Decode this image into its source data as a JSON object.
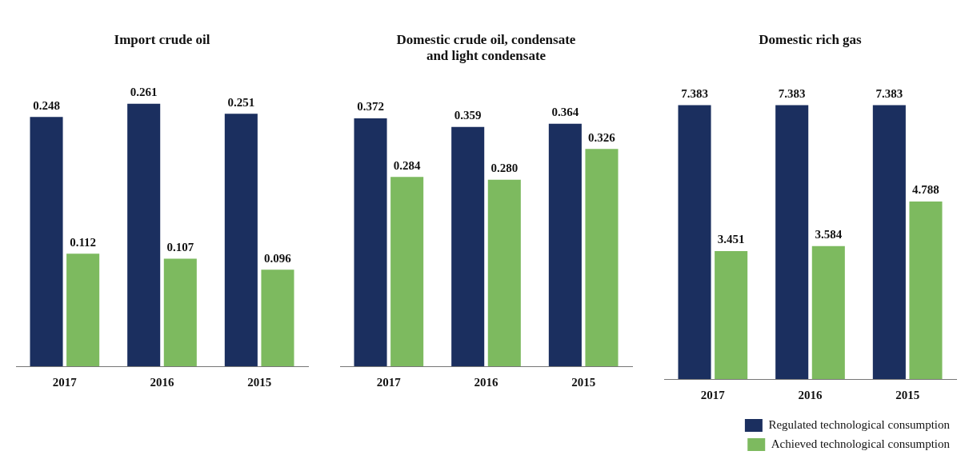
{
  "chart_data": [
    {
      "type": "bar",
      "title": "Import crude oil",
      "categories": [
        "2017",
        "2016",
        "2015"
      ],
      "series": [
        {
          "color": "#1b2f5f",
          "values": [
            0.248,
            0.261,
            0.251
          ]
        },
        {
          "color": "#7dba5f",
          "values": [
            0.112,
            0.107,
            0.096
          ]
        }
      ],
      "data_labels": true,
      "grid": false,
      "legend": false,
      "tick_labels": "x"
    },
    {
      "type": "bar",
      "title": "Domestic crude oil, condensate and light condensate",
      "categories": [
        "2017",
        "2016",
        "2015"
      ],
      "series": [
        {
          "color": "#1b2f5f",
          "values": [
            0.372,
            0.359,
            0.364
          ],
          "value_labels": [
            "0.372",
            "0.359",
            "0.364"
          ]
        },
        {
          "color": "#7dba5f",
          "values": [
            0.284,
            0.28,
            0.326
          ],
          "value_labels": [
            "0.284",
            "0.280",
            "0.326"
          ]
        }
      ],
      "grid": false,
      "legend": false,
      "tick_labels": "x"
    },
    {
      "type": "bar",
      "title": "Domestic rich gas",
      "categories": [
        "2017",
        "2016",
        "2015"
      ],
      "series": [
        {
          "name": "Regulated technological consumption",
          "color": "#1b2f5f",
          "values": [
            7.383,
            7.383,
            7.383
          ]
        },
        {
          "name": "Achieved technological consumption",
          "color": "#7dba5f",
          "values": [
            3.451,
            3.584,
            4.788
          ]
        }
      ],
      "data_labels": true,
      "grid": false,
      "legend": "bottom right",
      "tick_labels": "x"
    }
  ]
}
